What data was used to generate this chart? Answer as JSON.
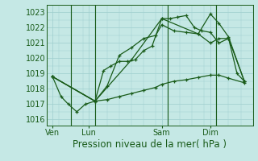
{
  "bg_color": "#c5e8e5",
  "grid_color": "#9ecece",
  "line_color": "#1a5c1a",
  "xlabel": "Pression niveau de la mer( hPa )",
  "xlabel_fontsize": 8.5,
  "yticks": [
    1016,
    1017,
    1018,
    1019,
    1020,
    1021,
    1022,
    1023
  ],
  "ytick_fontsize": 7,
  "xtick_labels": [
    "Ven",
    "Lun",
    "Sam",
    "Dim"
  ],
  "xtick_positions": [
    0.5,
    3.5,
    9.5,
    13.5
  ],
  "vline_positions": [
    2,
    4,
    10,
    14
  ],
  "ylim": [
    1015.6,
    1023.5
  ],
  "xlim": [
    0,
    17
  ],
  "series1_x": [
    0.5,
    1.2,
    1.8,
    2.5,
    3.2,
    4.0,
    4.7,
    5.3,
    6.0,
    6.7,
    7.3,
    8.0,
    8.7,
    9.5,
    10.2,
    10.8,
    11.5,
    12.2,
    12.8,
    13.5,
    14.2,
    15.0,
    15.7,
    16.3
  ],
  "series1_y": [
    1018.8,
    1017.5,
    1017.0,
    1016.5,
    1017.0,
    1017.2,
    1019.2,
    1019.5,
    1019.8,
    1019.8,
    1019.9,
    1020.5,
    1020.8,
    1022.6,
    1022.6,
    1022.7,
    1022.8,
    1022.0,
    1021.8,
    1021.7,
    1021.0,
    1021.3,
    1019.0,
    1018.5
  ],
  "series2_x": [
    0.5,
    4.0,
    5.0,
    6.0,
    7.0,
    8.0,
    9.0,
    9.5,
    10.5,
    11.5,
    12.5,
    13.5,
    14.2,
    15.0,
    16.3
  ],
  "series2_y": [
    1018.8,
    1017.2,
    1018.2,
    1020.2,
    1020.7,
    1021.3,
    1021.5,
    1022.2,
    1021.8,
    1021.7,
    1021.6,
    1022.9,
    1022.3,
    1021.4,
    1018.5
  ],
  "series3_x": [
    0.5,
    4.0,
    7.0,
    9.5,
    12.5,
    13.5,
    14.2,
    15.0,
    16.3
  ],
  "series3_y": [
    1018.8,
    1017.2,
    1019.9,
    1022.6,
    1021.6,
    1021.0,
    1021.3,
    1021.3,
    1018.5
  ],
  "series4_x": [
    0.5,
    4.0,
    5.0,
    6.0,
    7.0,
    8.0,
    9.0,
    9.5,
    10.5,
    11.5,
    12.5,
    13.5,
    14.2,
    15.0,
    16.3
  ],
  "series4_y": [
    1018.8,
    1017.2,
    1017.3,
    1017.5,
    1017.7,
    1017.9,
    1018.1,
    1018.3,
    1018.5,
    1018.6,
    1018.75,
    1018.9,
    1018.9,
    1018.7,
    1018.4
  ]
}
